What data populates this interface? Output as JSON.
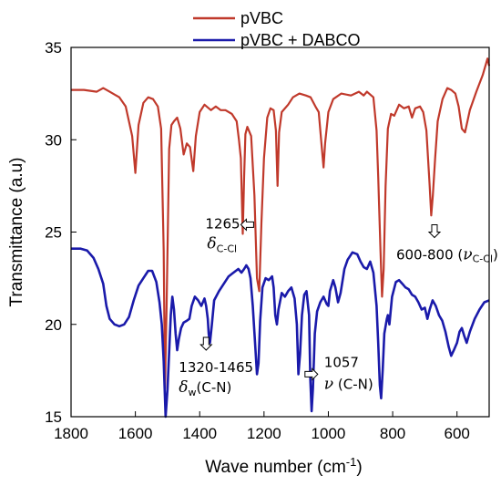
{
  "chart_data": {
    "type": "line",
    "xlabel": "Wave number (cm",
    "xlabel_sup": "-1",
    "xlabel_end": ")",
    "ylabel": "Transmittance (a.u)",
    "xlim": [
      1800,
      500
    ],
    "ylim": [
      15,
      35
    ],
    "x_ticks": [
      1800,
      1600,
      1400,
      1200,
      1000,
      800,
      600
    ],
    "y_ticks": [
      15,
      20,
      25,
      30,
      35
    ],
    "legend_position": "top",
    "series": [
      {
        "name": "pVBC",
        "color": "#c0392b",
        "points": [
          [
            1800,
            32.7
          ],
          [
            1760,
            32.7
          ],
          [
            1720,
            32.6
          ],
          [
            1700,
            32.8
          ],
          [
            1680,
            32.6
          ],
          [
            1650,
            32.3
          ],
          [
            1630,
            31.8
          ],
          [
            1610,
            30.2
          ],
          [
            1600,
            28.2
          ],
          [
            1590,
            30.8
          ],
          [
            1575,
            32.0
          ],
          [
            1560,
            32.3
          ],
          [
            1545,
            32.2
          ],
          [
            1530,
            31.8
          ],
          [
            1520,
            30.6
          ],
          [
            1512,
            24.0
          ],
          [
            1508,
            16.5
          ],
          [
            1503,
            21.0
          ],
          [
            1495,
            29.5
          ],
          [
            1488,
            30.8
          ],
          [
            1480,
            31.0
          ],
          [
            1470,
            31.2
          ],
          [
            1460,
            30.6
          ],
          [
            1450,
            29.2
          ],
          [
            1440,
            29.8
          ],
          [
            1430,
            29.6
          ],
          [
            1420,
            28.3
          ],
          [
            1412,
            30.2
          ],
          [
            1400,
            31.5
          ],
          [
            1385,
            31.9
          ],
          [
            1365,
            31.6
          ],
          [
            1350,
            31.8
          ],
          [
            1335,
            31.6
          ],
          [
            1320,
            31.6
          ],
          [
            1300,
            31.4
          ],
          [
            1285,
            31.0
          ],
          [
            1278,
            30.0
          ],
          [
            1272,
            29.0
          ],
          [
            1266,
            24.9
          ],
          [
            1262,
            28.0
          ],
          [
            1258,
            30.3
          ],
          [
            1252,
            30.7
          ],
          [
            1240,
            30.2
          ],
          [
            1230,
            27.0
          ],
          [
            1222,
            22.5
          ],
          [
            1215,
            21.8
          ],
          [
            1208,
            25.5
          ],
          [
            1200,
            29.0
          ],
          [
            1190,
            31.2
          ],
          [
            1180,
            31.7
          ],
          [
            1170,
            31.6
          ],
          [
            1163,
            30.5
          ],
          [
            1158,
            27.5
          ],
          [
            1153,
            30.4
          ],
          [
            1145,
            31.5
          ],
          [
            1125,
            31.9
          ],
          [
            1110,
            32.3
          ],
          [
            1090,
            32.5
          ],
          [
            1070,
            32.4
          ],
          [
            1055,
            32.3
          ],
          [
            1040,
            31.8
          ],
          [
            1030,
            31.5
          ],
          [
            1020,
            29.5
          ],
          [
            1015,
            28.5
          ],
          [
            1010,
            29.8
          ],
          [
            1000,
            31.5
          ],
          [
            985,
            32.2
          ],
          [
            960,
            32.5
          ],
          [
            930,
            32.4
          ],
          [
            905,
            32.6
          ],
          [
            890,
            32.4
          ],
          [
            880,
            32.6
          ],
          [
            860,
            32.3
          ],
          [
            850,
            30.5
          ],
          [
            845,
            28.0
          ],
          [
            838,
            24.0
          ],
          [
            833,
            21.5
          ],
          [
            828,
            23.0
          ],
          [
            822,
            27.5
          ],
          [
            815,
            30.6
          ],
          [
            805,
            31.4
          ],
          [
            795,
            31.3
          ],
          [
            780,
            31.9
          ],
          [
            765,
            31.7
          ],
          [
            750,
            31.8
          ],
          [
            740,
            31.2
          ],
          [
            730,
            31.7
          ],
          [
            715,
            31.8
          ],
          [
            705,
            31.5
          ],
          [
            695,
            30.5
          ],
          [
            685,
            27.5
          ],
          [
            680,
            25.9
          ],
          [
            675,
            27.0
          ],
          [
            668,
            29.0
          ],
          [
            660,
            31.0
          ],
          [
            645,
            32.2
          ],
          [
            630,
            32.8
          ],
          [
            618,
            32.7
          ],
          [
            605,
            32.5
          ],
          [
            595,
            31.8
          ],
          [
            585,
            30.6
          ],
          [
            575,
            30.4
          ],
          [
            560,
            31.6
          ],
          [
            540,
            32.6
          ],
          [
            520,
            33.5
          ],
          [
            505,
            34.4
          ],
          [
            500,
            34.0
          ]
        ]
      },
      {
        "name": "pVBC + DABCO",
        "color": "#1a1aaa",
        "points": [
          [
            1800,
            24.1
          ],
          [
            1770,
            24.1
          ],
          [
            1750,
            24.0
          ],
          [
            1730,
            23.6
          ],
          [
            1715,
            23.0
          ],
          [
            1700,
            22.2
          ],
          [
            1690,
            21.0
          ],
          [
            1680,
            20.3
          ],
          [
            1665,
            20.0
          ],
          [
            1650,
            19.9
          ],
          [
            1635,
            20.0
          ],
          [
            1620,
            20.4
          ],
          [
            1605,
            21.3
          ],
          [
            1590,
            22.1
          ],
          [
            1575,
            22.5
          ],
          [
            1560,
            22.9
          ],
          [
            1548,
            22.9
          ],
          [
            1535,
            22.3
          ],
          [
            1525,
            21.2
          ],
          [
            1518,
            20.0
          ],
          [
            1512,
            18.0
          ],
          [
            1506,
            15.0
          ],
          [
            1500,
            16.5
          ],
          [
            1495,
            18.5
          ],
          [
            1490,
            20.5
          ],
          [
            1485,
            21.5
          ],
          [
            1480,
            20.8
          ],
          [
            1475,
            19.5
          ],
          [
            1470,
            18.6
          ],
          [
            1465,
            19.2
          ],
          [
            1458,
            19.8
          ],
          [
            1450,
            20.1
          ],
          [
            1440,
            20.2
          ],
          [
            1432,
            20.3
          ],
          [
            1425,
            21.0
          ],
          [
            1415,
            21.5
          ],
          [
            1405,
            21.3
          ],
          [
            1395,
            21.0
          ],
          [
            1385,
            21.4
          ],
          [
            1380,
            21.0
          ],
          [
            1375,
            20.3
          ],
          [
            1372,
            19.5
          ],
          [
            1368,
            19.0
          ],
          [
            1362,
            20.0
          ],
          [
            1355,
            21.3
          ],
          [
            1340,
            21.8
          ],
          [
            1325,
            22.2
          ],
          [
            1310,
            22.6
          ],
          [
            1295,
            22.8
          ],
          [
            1280,
            23.0
          ],
          [
            1270,
            22.8
          ],
          [
            1262,
            23.0
          ],
          [
            1255,
            23.2
          ],
          [
            1248,
            23.0
          ],
          [
            1242,
            22.5
          ],
          [
            1235,
            21.0
          ],
          [
            1228,
            19.0
          ],
          [
            1222,
            17.3
          ],
          [
            1217,
            17.9
          ],
          [
            1212,
            20.2
          ],
          [
            1205,
            22.0
          ],
          [
            1195,
            22.5
          ],
          [
            1185,
            22.4
          ],
          [
            1175,
            22.6
          ],
          [
            1170,
            22.0
          ],
          [
            1165,
            20.5
          ],
          [
            1160,
            20.0
          ],
          [
            1155,
            20.8
          ],
          [
            1145,
            21.7
          ],
          [
            1135,
            21.5
          ],
          [
            1125,
            21.8
          ],
          [
            1115,
            22.0
          ],
          [
            1105,
            21.4
          ],
          [
            1098,
            20.0
          ],
          [
            1093,
            17.3
          ],
          [
            1088,
            18.4
          ],
          [
            1082,
            20.5
          ],
          [
            1075,
            21.6
          ],
          [
            1068,
            21.8
          ],
          [
            1060,
            20.5
          ],
          [
            1056,
            17.0
          ],
          [
            1052,
            15.3
          ],
          [
            1048,
            16.5
          ],
          [
            1042,
            19.5
          ],
          [
            1035,
            20.7
          ],
          [
            1025,
            21.2
          ],
          [
            1015,
            21.5
          ],
          [
            1005,
            21.1
          ],
          [
            1000,
            21.0
          ],
          [
            995,
            21.8
          ],
          [
            985,
            22.4
          ],
          [
            978,
            22.0
          ],
          [
            970,
            21.2
          ],
          [
            962,
            21.7
          ],
          [
            950,
            23.0
          ],
          [
            940,
            23.5
          ],
          [
            925,
            23.9
          ],
          [
            910,
            23.8
          ],
          [
            900,
            23.4
          ],
          [
            890,
            23.1
          ],
          [
            880,
            23.0
          ],
          [
            870,
            23.4
          ],
          [
            860,
            22.8
          ],
          [
            850,
            21.0
          ],
          [
            845,
            19.0
          ],
          [
            840,
            16.7
          ],
          [
            836,
            16.0
          ],
          [
            831,
            17.5
          ],
          [
            826,
            19.5
          ],
          [
            818,
            20.3
          ],
          [
            815,
            20.5
          ],
          [
            810,
            20.0
          ],
          [
            802,
            21.5
          ],
          [
            790,
            22.3
          ],
          [
            780,
            22.4
          ],
          [
            770,
            22.2
          ],
          [
            760,
            22.0
          ],
          [
            750,
            21.9
          ],
          [
            740,
            21.6
          ],
          [
            730,
            21.5
          ],
          [
            720,
            21.2
          ],
          [
            710,
            20.8
          ],
          [
            700,
            20.9
          ],
          [
            692,
            20.3
          ],
          [
            685,
            20.8
          ],
          [
            676,
            21.3
          ],
          [
            666,
            21.0
          ],
          [
            656,
            20.5
          ],
          [
            646,
            20.2
          ],
          [
            636,
            19.6
          ],
          [
            626,
            18.8
          ],
          [
            618,
            18.3
          ],
          [
            610,
            18.6
          ],
          [
            600,
            19.0
          ],
          [
            592,
            19.6
          ],
          [
            585,
            19.8
          ],
          [
            578,
            19.4
          ],
          [
            570,
            19.0
          ],
          [
            560,
            19.6
          ],
          [
            545,
            20.3
          ],
          [
            530,
            20.8
          ],
          [
            515,
            21.2
          ],
          [
            500,
            21.3
          ]
        ]
      }
    ],
    "annotations": [
      {
        "id": "a1265",
        "line1": "1265",
        "greek": "δ",
        "sub": "C-Cl",
        "arrow": "left",
        "x": 1255,
        "y": 25.4
      },
      {
        "id": "a600",
        "line1": "600-800 (",
        "greek": "ν",
        "sub": "C-Cl",
        "tail": ")",
        "arrow": "down",
        "x": 670,
        "y": 25.0
      },
      {
        "id": "a1320",
        "line1": "1320-1465",
        "greek": "δ",
        "sub": "w",
        "tail": "(C-N)",
        "arrow": "down",
        "x": 1380,
        "y": 18.9
      },
      {
        "id": "a1057",
        "line1": "1057",
        "greek": "ν",
        "tail": " (C-N)",
        "arrow": "right",
        "x": 1050,
        "y": 17.3
      }
    ]
  }
}
